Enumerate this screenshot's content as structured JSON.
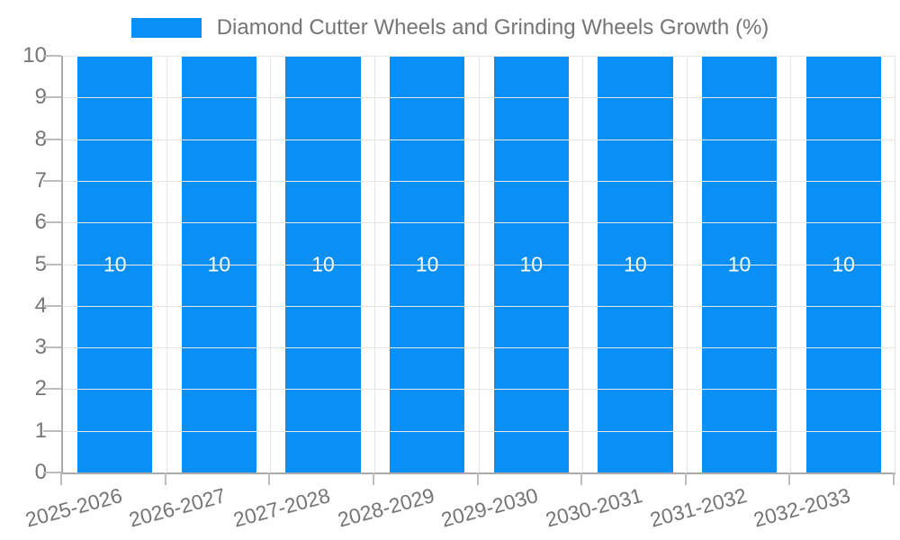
{
  "chart_data": {
    "type": "bar",
    "title": "Diamond Cutter Wheels and Grinding Wheels Growth (%)",
    "categories": [
      "2025-2026",
      "2026-2027",
      "2027-2028",
      "2028-2029",
      "2029-2030",
      "2030-2031",
      "2031-2032",
      "2032-2033"
    ],
    "series": [
      {
        "name": "Diamond Cutter Wheels and Grinding Wheels Growth (%)",
        "values": [
          10,
          10,
          10,
          10,
          10,
          10,
          10,
          10
        ]
      }
    ],
    "bar_value_labels": [
      "10",
      "10",
      "10",
      "10",
      "10",
      "10",
      "10",
      "10"
    ],
    "xlabel": "",
    "ylabel": "",
    "ylim": [
      0,
      10
    ],
    "ytick_labels": [
      "0",
      "1",
      "2",
      "3",
      "4",
      "5",
      "6",
      "7",
      "8",
      "9",
      "10"
    ],
    "grid": true,
    "legend_position": "top-center",
    "colors": {
      "bar": "#0A90F5",
      "text": "#757575",
      "axis": "#ABABAB",
      "tick": "#BDBDBD",
      "grid": "#E6E6E6",
      "bar_label": "#FFFFFF",
      "background": "#FFFFFF"
    }
  }
}
